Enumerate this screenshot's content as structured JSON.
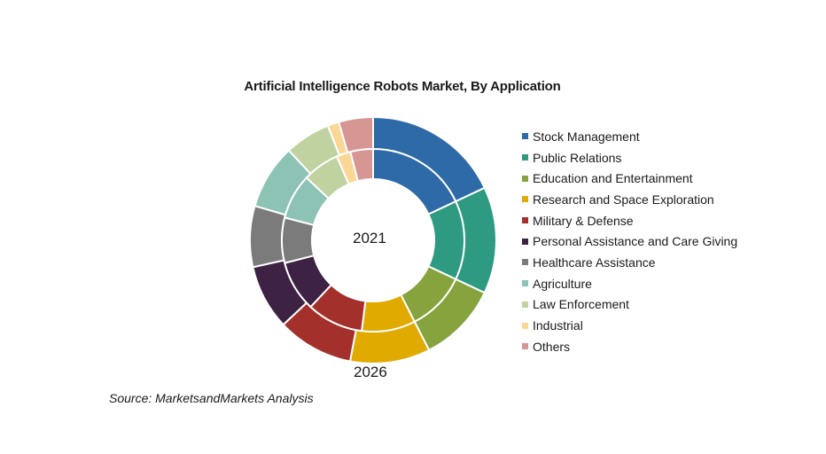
{
  "chart_data": {
    "type": "donut",
    "title": "Artificial Intelligence Robots Market, By Application",
    "categories": [
      "Stock Management",
      "Public Relations",
      "Education and Entertainment",
      "Research and Space Exploration",
      "Military & Defense",
      "Personal Assistance and Care Giving",
      "Healthcare Assistance",
      "Agriculture",
      "Law Enforcement",
      "Industrial",
      "Others"
    ],
    "colors": [
      "#2e6aa7",
      "#2e9a82",
      "#86a33e",
      "#e0aa00",
      "#a3302b",
      "#3d2243",
      "#7b7b7b",
      "#8cc3b4",
      "#bfd29f",
      "#fbd795",
      "#d69693"
    ],
    "series": [
      {
        "name": "2021",
        "ring": "inner",
        "values": [
          18.0,
          14.0,
          10.5,
          9.5,
          10.0,
          9.0,
          8.0,
          8.0,
          6.5,
          2.5,
          4.0
        ]
      },
      {
        "name": "2026",
        "ring": "outer",
        "values": [
          18.0,
          14.0,
          10.5,
          10.5,
          10.0,
          8.5,
          8.0,
          8.5,
          6.0,
          1.5,
          4.5
        ]
      }
    ],
    "legend_position": "right",
    "source": "Source: MarketsandMarkets Analysis"
  }
}
